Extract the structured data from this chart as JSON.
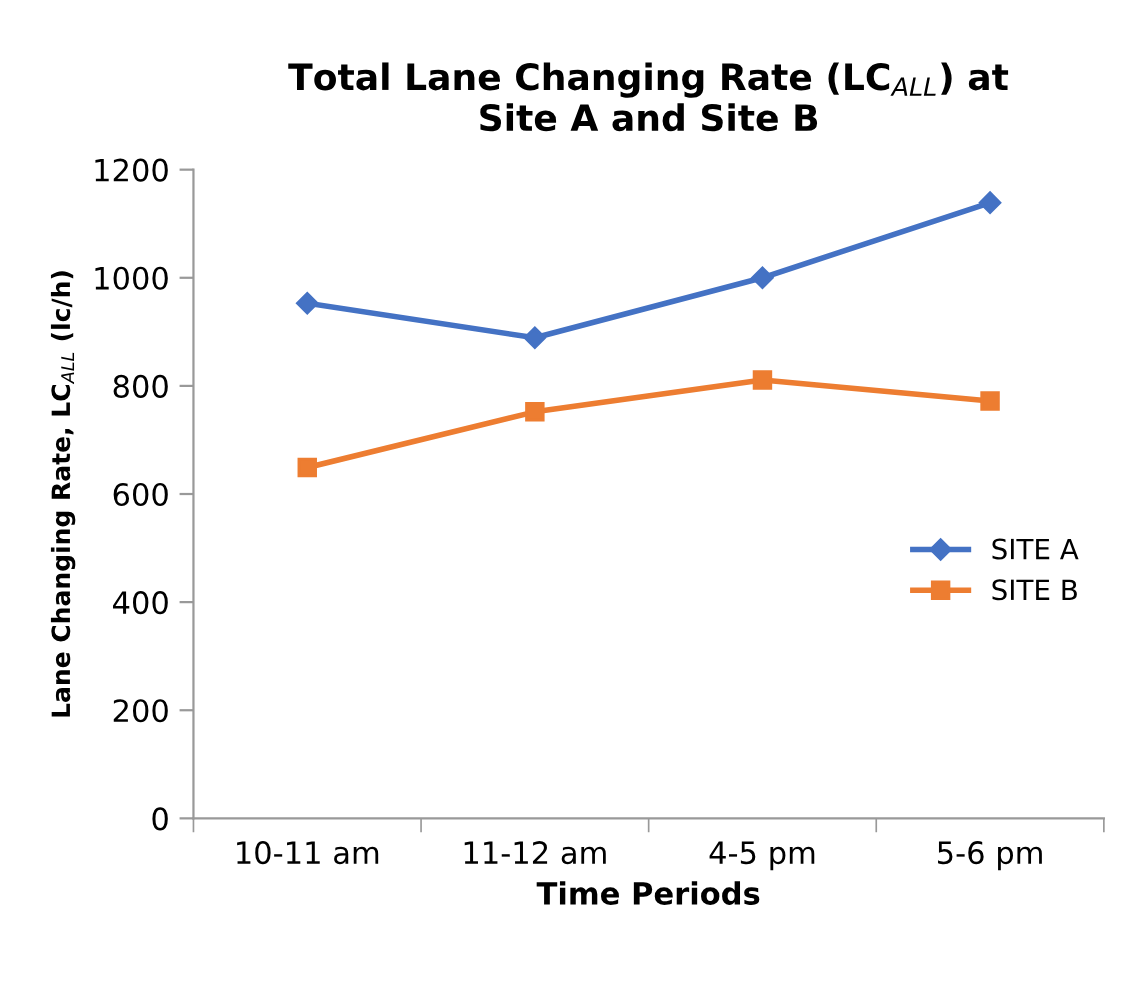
{
  "chart_data": {
    "type": "line",
    "title": "Total Lane Changing Rate (LC$_{ALL}$) at\nSite A and Site B",
    "xlabel": "Time Periods",
    "ylabel": "Lane Changing Rate, LC$_{ALL}$ (lc/h)",
    "categories": [
      "10-11 am",
      "11-12 am",
      "4-5 pm",
      "5-6 pm"
    ],
    "series": [
      {
        "name": "SITE A",
        "color": "#4472c4",
        "marker": "diamond",
        "values": [
          953,
          889,
          1000,
          1139
        ]
      },
      {
        "name": "SITE B",
        "color": "#ed7d31",
        "marker": "square",
        "values": [
          649,
          752,
          811,
          772
        ]
      }
    ],
    "ylim": [
      0,
      1200
    ],
    "yticks": [
      0,
      200,
      400,
      600,
      800,
      1000,
      1200
    ],
    "grid": false,
    "legend": "right",
    "line_style": "solid"
  }
}
